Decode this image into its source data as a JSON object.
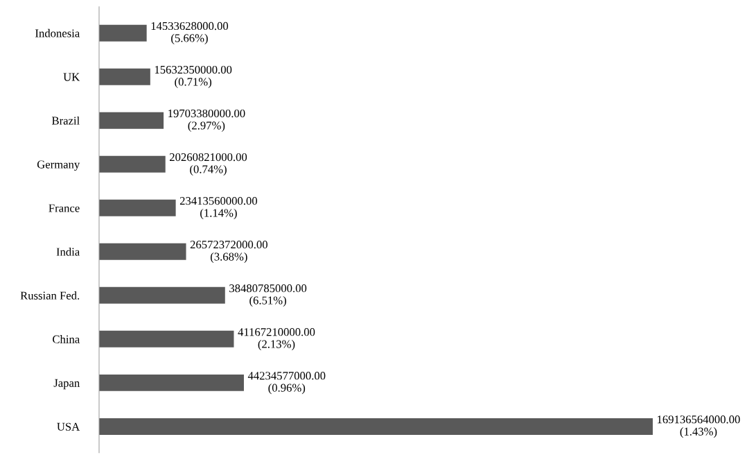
{
  "chart_data": {
    "type": "bar",
    "orientation": "horizontal",
    "categories": [
      "Indonesia",
      "UK",
      "Brazil",
      "Germany",
      "France",
      "India",
      "Russian Fed.",
      "China",
      "Japan",
      "USA"
    ],
    "values": [
      14533628000,
      15632350000,
      19703380000,
      20260821000,
      23413560000,
      26572372000,
      38480785000,
      41167210000,
      44234577000,
      169136564000
    ],
    "value_labels": [
      "14533628000.00\n(5.66%)",
      "15632350000.00\n(0.71%)",
      "19703380000.00\n(2.97%)",
      "20260821000.00\n(0.74%)",
      "23413560000.00\n(1.14%)",
      "26572372000.00\n(3.68%)",
      "38480785000.00\n(6.51%)",
      "41167210000.00\n(2.13%)",
      "44234577000.00\n(0.96%)",
      "169136564000.00\n(1.43%)"
    ],
    "color": "#595959",
    "grid": false,
    "legend": false
  }
}
